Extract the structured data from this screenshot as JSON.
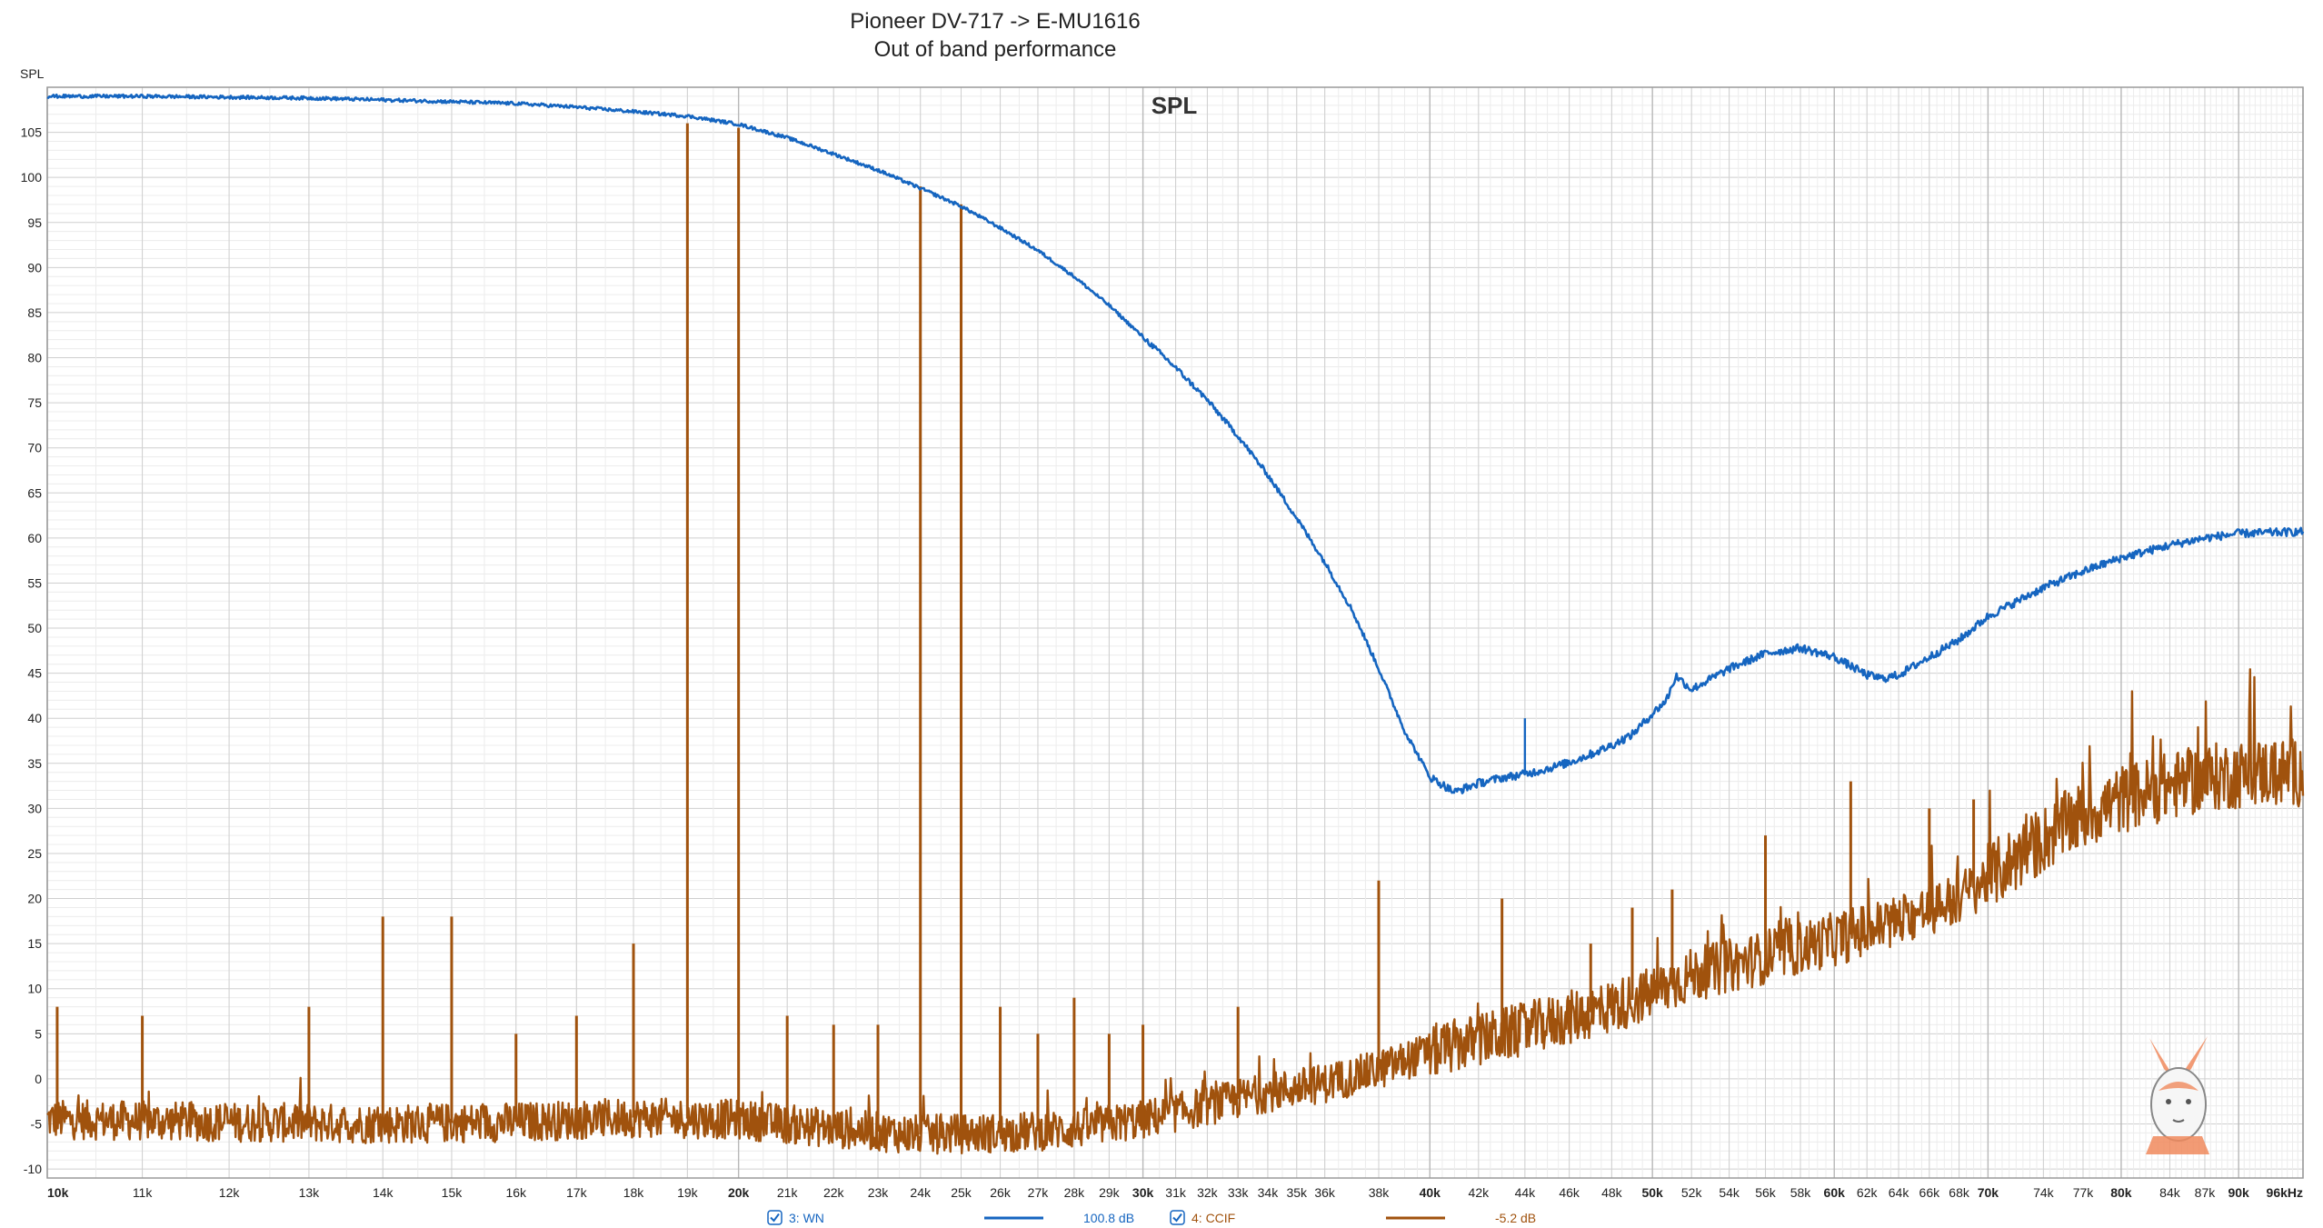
{
  "title_line1": "Pioneer DV-717 -> E-MU1616",
  "title_line2": "Out of band performance",
  "inner_title": "SPL",
  "colors": {
    "wn": "#1565c0",
    "ccif": "#a0520d",
    "grid_major": "#cfcfcf",
    "grid_minor": "#ececec",
    "axis": "#9a9a9a"
  },
  "chart_data": {
    "type": "line",
    "title": "Pioneer DV-717 -> E-MU1616 / Out of band performance",
    "ylabel": "SPL",
    "xlabel": "",
    "x_scale": "log",
    "xlim": [
      10000,
      96000
    ],
    "ylim": [
      -11,
      110
    ],
    "grid": true,
    "legend_position": "bottom",
    "y_ticks": [
      105,
      100,
      95,
      90,
      85,
      80,
      75,
      70,
      65,
      60,
      55,
      50,
      45,
      40,
      35,
      30,
      25,
      20,
      15,
      10,
      5,
      0,
      -5,
      -10
    ],
    "x_ticks": [
      {
        "v": 10000,
        "label": "10k",
        "major": true
      },
      {
        "v": 11000,
        "label": "11k"
      },
      {
        "v": 12000,
        "label": "12k"
      },
      {
        "v": 13000,
        "label": "13k"
      },
      {
        "v": 14000,
        "label": "14k"
      },
      {
        "v": 15000,
        "label": "15k"
      },
      {
        "v": 16000,
        "label": "16k"
      },
      {
        "v": 17000,
        "label": "17k"
      },
      {
        "v": 18000,
        "label": "18k"
      },
      {
        "v": 19000,
        "label": "19k"
      },
      {
        "v": 20000,
        "label": "20k",
        "major": true
      },
      {
        "v": 21000,
        "label": "21k"
      },
      {
        "v": 22000,
        "label": "22k"
      },
      {
        "v": 23000,
        "label": "23k"
      },
      {
        "v": 24000,
        "label": "24k"
      },
      {
        "v": 25000,
        "label": "25k"
      },
      {
        "v": 26000,
        "label": "26k"
      },
      {
        "v": 27000,
        "label": "27k"
      },
      {
        "v": 28000,
        "label": "28k"
      },
      {
        "v": 29000,
        "label": "29k"
      },
      {
        "v": 30000,
        "label": "30k",
        "major": true
      },
      {
        "v": 31000,
        "label": "31k"
      },
      {
        "v": 32000,
        "label": "32k"
      },
      {
        "v": 33000,
        "label": "33k"
      },
      {
        "v": 34000,
        "label": "34k"
      },
      {
        "v": 35000,
        "label": "35k"
      },
      {
        "v": 36000,
        "label": "36k"
      },
      {
        "v": 38000,
        "label": "38k"
      },
      {
        "v": 40000,
        "label": "40k",
        "major": true
      },
      {
        "v": 42000,
        "label": "42k"
      },
      {
        "v": 44000,
        "label": "44k"
      },
      {
        "v": 46000,
        "label": "46k"
      },
      {
        "v": 48000,
        "label": "48k"
      },
      {
        "v": 50000,
        "label": "50k",
        "major": true
      },
      {
        "v": 52000,
        "label": "52k"
      },
      {
        "v": 54000,
        "label": "54k"
      },
      {
        "v": 56000,
        "label": "56k"
      },
      {
        "v": 58000,
        "label": "58k"
      },
      {
        "v": 60000,
        "label": "60k",
        "major": true
      },
      {
        "v": 62000,
        "label": "62k"
      },
      {
        "v": 64000,
        "label": "64k"
      },
      {
        "v": 66000,
        "label": "66k"
      },
      {
        "v": 68000,
        "label": "68k"
      },
      {
        "v": 70000,
        "label": "70k",
        "major": true
      },
      {
        "v": 74000,
        "label": "74k"
      },
      {
        "v": 77000,
        "label": "77k"
      },
      {
        "v": 80000,
        "label": "80k",
        "major": true
      },
      {
        "v": 84000,
        "label": "84k"
      },
      {
        "v": 87000,
        "label": "87k"
      },
      {
        "v": 90000,
        "label": "90k",
        "major": true
      },
      {
        "v": 96000,
        "label": "96kHz",
        "major": true
      }
    ],
    "series": [
      {
        "name": "3: WN",
        "legend_value": "100.8 dB",
        "color": "#1565c0",
        "x": [
          10000,
          11000,
          12000,
          13000,
          14000,
          15000,
          16000,
          17000,
          18000,
          19000,
          20000,
          21000,
          22000,
          23000,
          24000,
          25000,
          26000,
          27000,
          28000,
          29000,
          30000,
          31000,
          32000,
          33000,
          34000,
          35000,
          36000,
          37000,
          38000,
          39000,
          40000,
          41000,
          42000,
          43000,
          44000,
          45000,
          46000,
          47000,
          48000,
          49000,
          50000,
          50700,
          51200,
          52000,
          54000,
          56000,
          58000,
          60000,
          62000,
          63000,
          64000,
          66000,
          68000,
          70000,
          74000,
          77000,
          80000,
          84000,
          87000,
          90000,
          93000,
          96000
        ],
        "y": [
          109,
          109,
          108.9,
          108.8,
          108.6,
          108.4,
          108.2,
          107.8,
          107.3,
          106.8,
          105.9,
          104.4,
          102.6,
          100.8,
          98.8,
          96.8,
          94.4,
          91.9,
          89,
          85.8,
          82.3,
          78.9,
          75.3,
          71.3,
          67,
          62.2,
          57.3,
          52,
          45.5,
          38.6,
          33.5,
          31.8,
          32.8,
          33.4,
          33.8,
          34.4,
          35.1,
          36,
          37,
          38.2,
          40.5,
          42,
          44.7,
          43.2,
          45.5,
          47.2,
          47.8,
          46.8,
          44.8,
          44.4,
          44.8,
          46.8,
          48.7,
          51.3,
          54.5,
          56.3,
          57.8,
          59.2,
          60,
          60.5,
          60.6,
          60.7
        ],
        "spikes": [
          {
            "x": 44000,
            "y": 40
          }
        ]
      },
      {
        "name": "4: CCIF",
        "legend_value": "-5.2 dB",
        "color": "#a0520d",
        "floor_x": [
          10000,
          12000,
          14000,
          16000,
          18000,
          20000,
          22000,
          24000,
          26000,
          28000,
          30000,
          32000,
          34000,
          36000,
          38000,
          40000,
          44000,
          48000,
          50000,
          52000,
          56000,
          60000,
          64000,
          68000,
          72000,
          76000,
          80000,
          84000,
          88000,
          92000,
          96000
        ],
        "floor_y": [
          -4.5,
          -4.8,
          -5,
          -4.8,
          -4.3,
          -4.5,
          -5.5,
          -6.2,
          -6,
          -5.6,
          -4.5,
          -3,
          -1.5,
          -0.5,
          1,
          3,
          5.5,
          8,
          9.5,
          11.5,
          13.5,
          15.5,
          17.5,
          20,
          24.5,
          28.5,
          31,
          32.5,
          33.5,
          34,
          34
        ],
        "spikes": [
          {
            "x": 19000,
            "y": 106
          },
          {
            "x": 20000,
            "y": 105.5
          },
          {
            "x": 24000,
            "y": 99
          },
          {
            "x": 25000,
            "y": 97
          },
          {
            "x": 10100,
            "y": 8
          },
          {
            "x": 11000,
            "y": 7
          },
          {
            "x": 13000,
            "y": 8
          },
          {
            "x": 14000,
            "y": 18
          },
          {
            "x": 15000,
            "y": 18
          },
          {
            "x": 16000,
            "y": 5
          },
          {
            "x": 17000,
            "y": 7
          },
          {
            "x": 18000,
            "y": 15
          },
          {
            "x": 21000,
            "y": 7
          },
          {
            "x": 22000,
            "y": 6
          },
          {
            "x": 23000,
            "y": 6
          },
          {
            "x": 26000,
            "y": 8
          },
          {
            "x": 27000,
            "y": 5
          },
          {
            "x": 28000,
            "y": 9
          },
          {
            "x": 29000,
            "y": 5
          },
          {
            "x": 30000,
            "y": 6
          },
          {
            "x": 33000,
            "y": 8
          },
          {
            "x": 38000,
            "y": 22
          },
          {
            "x": 43000,
            "y": 20
          },
          {
            "x": 47000,
            "y": 15
          },
          {
            "x": 49000,
            "y": 19
          },
          {
            "x": 51000,
            "y": 21
          },
          {
            "x": 56000,
            "y": 27
          },
          {
            "x": 61000,
            "y": 33
          },
          {
            "x": 66000,
            "y": 30
          },
          {
            "x": 69000,
            "y": 31
          }
        ]
      }
    ]
  }
}
